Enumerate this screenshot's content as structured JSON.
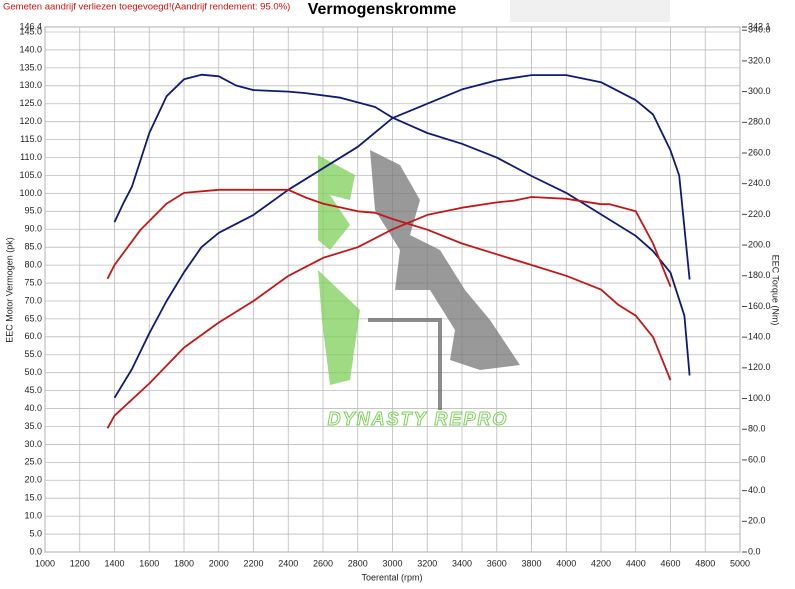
{
  "chart_data": {
    "type": "line",
    "title": "Vermogenskromme",
    "annotation": "Gemeten aandrijf verliezen toegevoegd!(Aandrijf rendement: 95.0%)",
    "watermark": "DYNASTY REPRO",
    "xlabel": "Toerental (rpm)",
    "ylabel": "EEC Motor Vermogen (pk)",
    "y2label": "EEC Torque (Nm)",
    "xlim": [
      1000,
      5000
    ],
    "xticks": [
      1000,
      1200,
      1400,
      1600,
      1800,
      2000,
      2200,
      2400,
      2600,
      2800,
      3000,
      3200,
      3400,
      3600,
      3800,
      4000,
      4200,
      4400,
      4600,
      4800,
      5000
    ],
    "ylim": [
      0,
      146.4
    ],
    "yticks": [
      {
        "value": 0,
        "label": "0.0"
      },
      {
        "value": 5,
        "label": "5.0"
      },
      {
        "value": 10,
        "label": "10.0"
      },
      {
        "value": 15,
        "label": "15.0"
      },
      {
        "value": 20,
        "label": "20.0"
      },
      {
        "value": 25,
        "label": "25.0"
      },
      {
        "value": 30,
        "label": "30.0"
      },
      {
        "value": 35,
        "label": "35.0"
      },
      {
        "value": 40,
        "label": "40.0"
      },
      {
        "value": 45,
        "label": "45.0"
      },
      {
        "value": 50,
        "label": "50.0"
      },
      {
        "value": 55,
        "label": "55.0"
      },
      {
        "value": 60,
        "label": "60.0"
      },
      {
        "value": 65,
        "label": "65.0"
      },
      {
        "value": 70,
        "label": "70.0"
      },
      {
        "value": 75,
        "label": "75.0"
      },
      {
        "value": 80,
        "label": "80.0"
      },
      {
        "value": 85,
        "label": "85.0"
      },
      {
        "value": 90,
        "label": "90.0"
      },
      {
        "value": 95,
        "label": "95.0"
      },
      {
        "value": 100,
        "label": "100.0"
      },
      {
        "value": 105,
        "label": "105.0"
      },
      {
        "value": 110,
        "label": "110.0"
      },
      {
        "value": 115,
        "label": "115.0"
      },
      {
        "value": 120,
        "label": "120.0"
      },
      {
        "value": 125,
        "label": "125.0"
      },
      {
        "value": 130,
        "label": "130.0"
      },
      {
        "value": 135,
        "label": "135.0"
      },
      {
        "value": 140,
        "label": "140.0"
      },
      {
        "value": 145,
        "label": "145.0"
      },
      {
        "value": 146.4,
        "label": "146.4"
      }
    ],
    "y2lim": [
      0,
      342.1
    ],
    "y2ticks": [
      {
        "value": 0,
        "label": "0.0"
      },
      {
        "value": 20,
        "label": "20.0"
      },
      {
        "value": 40,
        "label": "40.0"
      },
      {
        "value": 60,
        "label": "60.0"
      },
      {
        "value": 80,
        "label": "80.0"
      },
      {
        "value": 100,
        "label": "100.0"
      },
      {
        "value": 120,
        "label": "120.0"
      },
      {
        "value": 140,
        "label": "140.0"
      },
      {
        "value": 160,
        "label": "160.0"
      },
      {
        "value": 180,
        "label": "180.0"
      },
      {
        "value": 200,
        "label": "200.0"
      },
      {
        "value": 220,
        "label": "220.0"
      },
      {
        "value": 240,
        "label": "240.0"
      },
      {
        "value": 260,
        "label": "260.0"
      },
      {
        "value": 280,
        "label": "280.0"
      },
      {
        "value": 300,
        "label": "300.0"
      },
      {
        "value": 320,
        "label": "320.0"
      },
      {
        "value": 340,
        "label": "340.0"
      },
      {
        "value": 342.1,
        "label": "342.1"
      }
    ],
    "grid": true,
    "series": [
      {
        "color": "#101a70",
        "axis": "y2",
        "x": [
          1400,
          1450,
          1500,
          1600,
          1700,
          1800,
          1900,
          2000,
          2100,
          2200,
          2400,
          2500,
          2700,
          2900,
          3000,
          3200,
          3400,
          3600,
          3800,
          4000,
          4200,
          4400,
          4500,
          4600,
          4680,
          4710
        ],
        "values": [
          215,
          227,
          238,
          273,
          297,
          308,
          311,
          310,
          304,
          301,
          300,
          299,
          296,
          290,
          283,
          273,
          266,
          257,
          245,
          234,
          220,
          206,
          196,
          182,
          154,
          115
        ]
      },
      {
        "color": "#101a70",
        "axis": "y",
        "x": [
          1400,
          1450,
          1500,
          1600,
          1700,
          1800,
          1900,
          2000,
          2200,
          2400,
          2600,
          2800,
          3000,
          3200,
          3400,
          3600,
          3800,
          4000,
          4200,
          4400,
          4500,
          4600,
          4650,
          4710
        ],
        "values": [
          43,
          47,
          51,
          61,
          70,
          78,
          85,
          89,
          94,
          101,
          107,
          113,
          121,
          125,
          129,
          131.5,
          133,
          133,
          131,
          126,
          122,
          112,
          105,
          76
        ]
      },
      {
        "color": "#c01818",
        "axis": "y2",
        "x": [
          1360,
          1400,
          1550,
          1700,
          1800,
          2000,
          2200,
          2400,
          2500,
          2600,
          2800,
          2900,
          3000,
          3200,
          3400,
          3600,
          3800,
          4000,
          4200,
          4300,
          4400,
          4500,
          4600
        ],
        "values": [
          178,
          187,
          210,
          227,
          234,
          236,
          236,
          236,
          231,
          227,
          222,
          221,
          217,
          210,
          201,
          194,
          187,
          180,
          171,
          161,
          154,
          140,
          112
        ]
      },
      {
        "color": "#c01818",
        "axis": "y",
        "x": [
          1360,
          1400,
          1600,
          1800,
          2000,
          2200,
          2400,
          2600,
          2800,
          3000,
          3200,
          3400,
          3600,
          3700,
          3800,
          4000,
          4200,
          4250,
          4400,
          4500,
          4600
        ],
        "values": [
          34.5,
          38,
          47,
          57,
          64,
          70,
          77,
          82,
          85,
          90,
          94,
          96,
          97.5,
          98,
          99,
          98.5,
          97,
          97,
          95,
          86,
          74
        ]
      }
    ]
  }
}
